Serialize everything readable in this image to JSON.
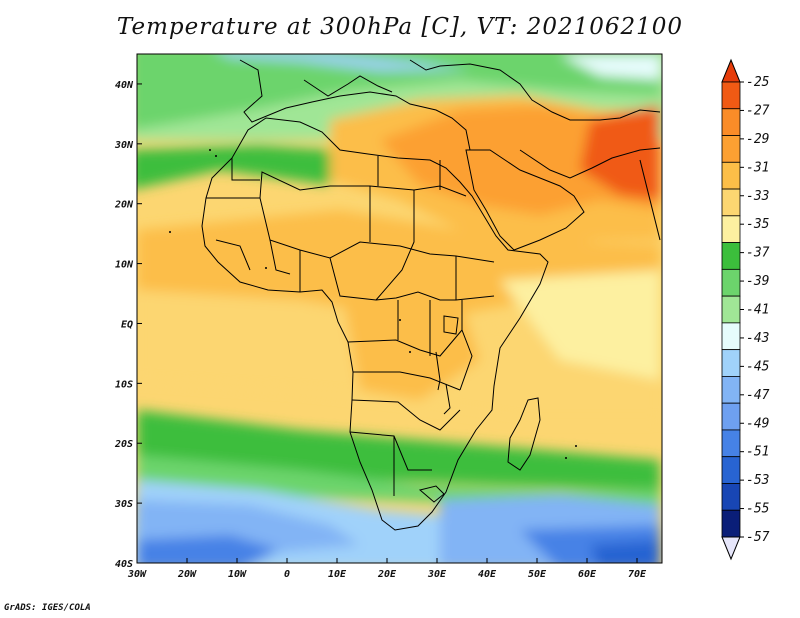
{
  "title": "Temperature at 300hPa [C], VT: 2021062100",
  "footer": "GrADS: IGES/COLA",
  "map": {
    "lon_range": [
      -30,
      75
    ],
    "lat_range": [
      -40,
      45
    ],
    "x_ticks": [
      {
        "lon": -30,
        "label": "30W"
      },
      {
        "lon": -20,
        "label": "20W"
      },
      {
        "lon": -10,
        "label": "10W"
      },
      {
        "lon": 0,
        "label": "0"
      },
      {
        "lon": 10,
        "label": "10E"
      },
      {
        "lon": 20,
        "label": "20E"
      },
      {
        "lon": 30,
        "label": "30E"
      },
      {
        "lon": 40,
        "label": "40E"
      },
      {
        "lon": 50,
        "label": "50E"
      },
      {
        "lon": 60,
        "label": "60E"
      },
      {
        "lon": 70,
        "label": "70E"
      }
    ],
    "y_ticks": [
      {
        "lat": 40,
        "label": "40N"
      },
      {
        "lat": 30,
        "label": "30N"
      },
      {
        "lat": 20,
        "label": "20N"
      },
      {
        "lat": 10,
        "label": "10N"
      },
      {
        "lat": 0,
        "label": "EQ"
      },
      {
        "lat": -10,
        "label": "10S"
      },
      {
        "lat": -20,
        "label": "20S"
      },
      {
        "lat": -30,
        "label": "30S"
      },
      {
        "lat": -40,
        "label": "40S"
      }
    ]
  },
  "colorbar": {
    "levels": [
      "-25",
      "-27",
      "-29",
      "-31",
      "-33",
      "-35",
      "-37",
      "-39",
      "-41",
      "-43",
      "-45",
      "-47",
      "-49",
      "-51",
      "-53",
      "-55",
      "-57"
    ],
    "colors": [
      "#f05a14",
      "#fa8c28",
      "#fca032",
      "#fcbe48",
      "#fcd671",
      "#fdf0a0",
      "#3cbe3c",
      "#6cd46c",
      "#a0e696",
      "#e6fcfc",
      "#a0d2fa",
      "#82b4f5",
      "#6ea0f0",
      "#4682e6",
      "#2864d2",
      "#1846b4",
      "#0a1e78"
    ],
    "top_color": "#e63c0a",
    "bottom_color": "#e6e6fa"
  }
}
